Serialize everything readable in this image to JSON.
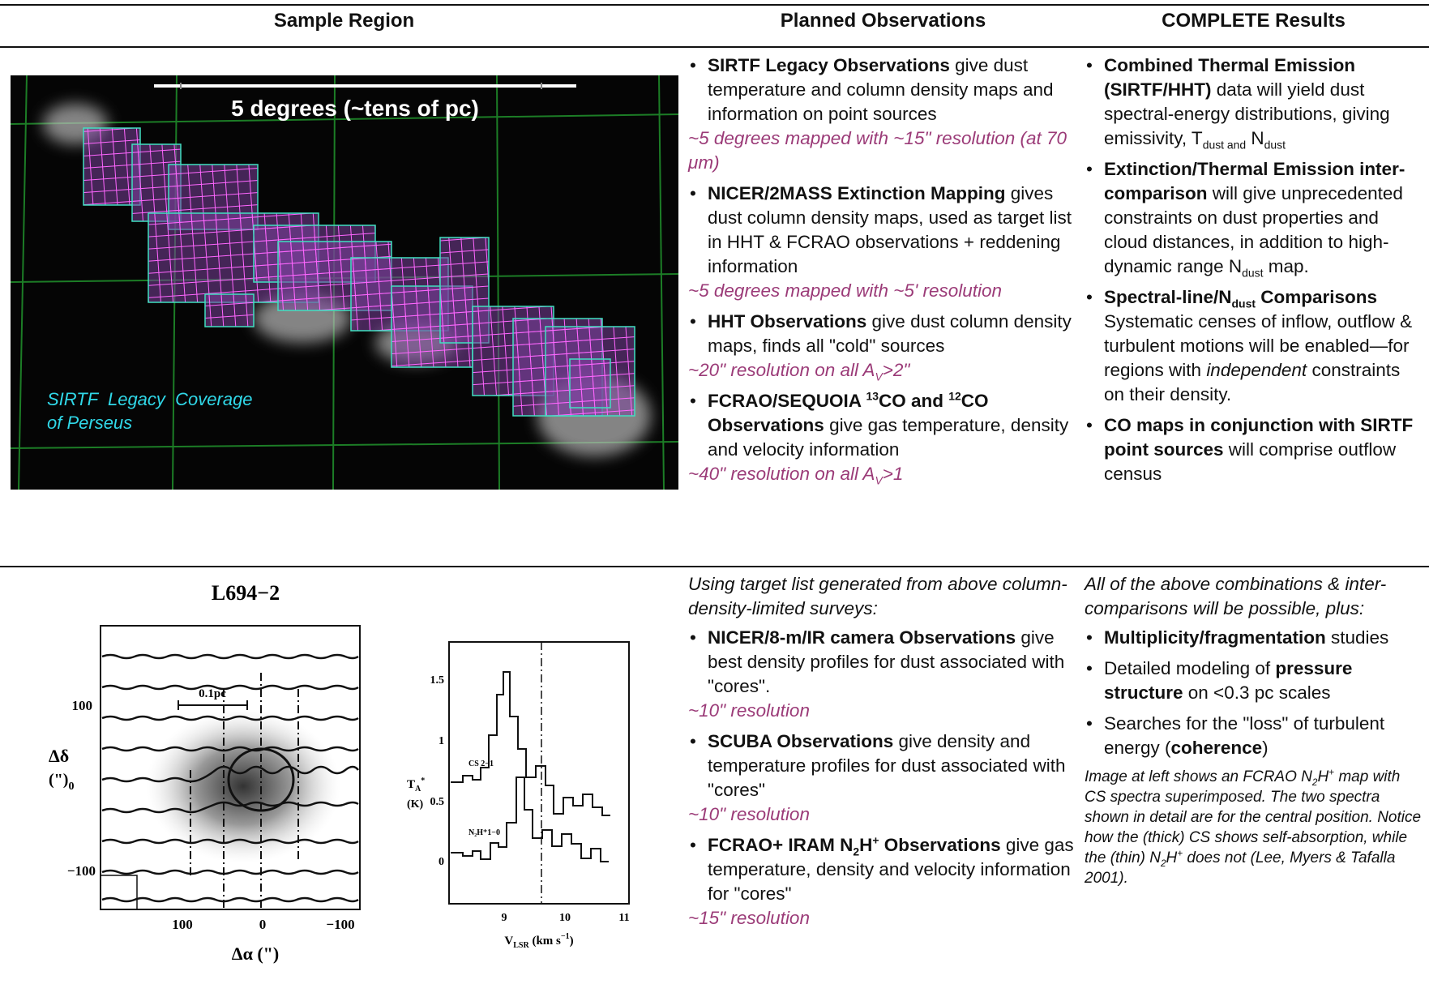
{
  "header": {
    "col1": "Sample Region",
    "col2": "Planned Observations",
    "col3": "COMPLETE Results"
  },
  "sample_figure": {
    "scale_label": "5 degrees (~tens of pc)",
    "caption_line1": "SIRTF  Legacy  Coverage",
    "caption_line2": "of Perseus"
  },
  "planned_top": {
    "items": [
      {
        "parts": [
          "SIRTF Legacy Observations",
          " give dust temperature and column density maps and information on point sources"
        ],
        "note": [
          "~5 degrees mapped with ~15\" resolution (at 70 μm)"
        ]
      },
      {
        "parts": [
          "NICER/2MASS Extinction Mapping",
          " gives dust column density maps, used as target list in HHT & FCRAO observations + reddening information"
        ],
        "note": [
          "~5 degrees mapped with ~5' resolution"
        ]
      },
      {
        "parts": [
          "HHT Observations",
          " give dust column density maps, finds all \"cold\" sources"
        ],
        "note": [
          "~20\" resolution on all A",
          "V",
          ">2\""
        ]
      },
      {
        "parts": [
          "FCRAO/SEQUOIA ",
          "13",
          "CO and ",
          "12",
          "CO Observations",
          " give gas temperature, density and velocity information"
        ],
        "note": [
          "~40\" resolution on all A",
          "V",
          ">1"
        ]
      }
    ]
  },
  "results_top": {
    "items": [
      {
        "parts": [
          "Combined Thermal Emission (SIRTF/HHT)",
          " data will yield dust spectral-energy distributions, giving emissivity, T",
          "dust and",
          " N",
          "dust"
        ]
      },
      {
        "parts": [
          "Extinction/Thermal Emission inter-comparison",
          " will give unprecedented constraints on dust properties and cloud distances, in addition to high-dynamic range N",
          "dust",
          " map."
        ]
      },
      {
        "parts": [
          "Spectral-line/N",
          "dust",
          " Comparisons",
          " Systematic censes of inflow, outflow & turbulent motions will be enabled—for regions with ",
          "independent",
          " constraints on their density."
        ]
      },
      {
        "parts": [
          "CO maps in conjunction with SIRTF point sources",
          " will comprise outflow census"
        ]
      }
    ]
  },
  "plot_figure": {
    "title": "L694−2",
    "map_ytick_top": "100",
    "map_ylabel": "Δδ",
    "map_ylabel_unit": "(\")",
    "map_ylabel_zero": "0",
    "map_ytick_bottom": "−100",
    "scale_bar": "0.1pc",
    "map_xticks": [
      "100",
      "0",
      "−100"
    ],
    "map_xlabel": "Δα (\")",
    "spec_yticks": [
      "1.5",
      "1",
      "0.5",
      "0"
    ],
    "spec_xticks": [
      "9",
      "10",
      "11"
    ],
    "spec_ylabel": "T",
    "spec_ylabel_sub": "A",
    "spec_ylabel_sup": "*",
    "spec_yunit": "(K)",
    "spec_line1": "CS 2−1",
    "spec_line2": "N₂H⁺1−0",
    "spec_xlabel": "V",
    "spec_xlabel_sub": "LSR",
    "spec_xunit": " (km s",
    "spec_xunit_sup": "−1",
    "spec_xunit_end": ")"
  },
  "planned_bottom": {
    "intro": "Using target list generated from above column-density-limited surveys:",
    "items": [
      {
        "parts": [
          "NICER/8-m/IR camera Observations",
          " give best density profiles for dust associated with \"cores\"."
        ],
        "note": [
          "~10\" resolution"
        ]
      },
      {
        "parts": [
          "SCUBA Observations",
          " give density and temperature profiles for dust associated with \"cores\""
        ],
        "note": [
          "~10\" resolution"
        ]
      },
      {
        "parts": [
          "FCRAO+ IRAM N",
          "2",
          "H",
          "+",
          " Observations",
          " give gas temperature, density and velocity information for \"cores\""
        ],
        "note": [
          "~15\" resolution"
        ]
      }
    ]
  },
  "results_bottom": {
    "intro": "All of the above combinations & inter-comparisons will be possible, plus:",
    "items": [
      {
        "parts": [
          "Multiplicity/fragmentation",
          " studies"
        ]
      },
      {
        "parts": [
          "Detailed modeling of ",
          "pressure structure",
          " on <0.3 pc scales"
        ]
      },
      {
        "parts": [
          "Searches for the \"loss\" of turbulent energy (",
          "coherence",
          ")"
        ]
      }
    ],
    "note": [
      "Image at left shows an FCRAO N",
      "2",
      "H",
      "+",
      " map with CS spectra superimposed. The two spectra shown in detail are for the central position. Notice how the (thick) CS shows self-absorption, while the (thin) N",
      "2",
      "H",
      "+",
      " does not (Lee, Myers & Tafalla 2001)."
    ]
  }
}
